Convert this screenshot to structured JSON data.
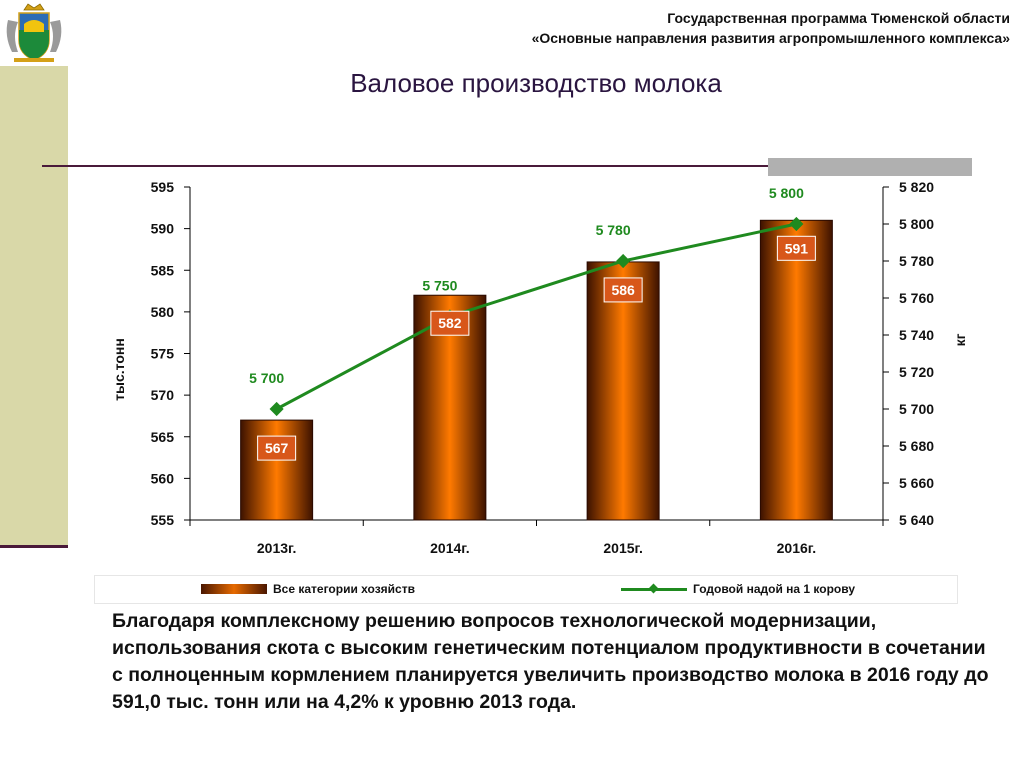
{
  "header": {
    "line1": "Государственная программа Тюменской области",
    "line2": "«Основные направления развития агропромышленного комплекса»"
  },
  "emblem_icon": "tyumen-coat-of-arms-icon",
  "title": "Валовое производство молока",
  "colors": {
    "bar_dark": "#4a1600",
    "bar_light": "#e66a00",
    "line": "#1f8a1f",
    "label_box": "#d8571a",
    "band": "#d9d8a8",
    "accent_dark": "#4a1a3a"
  },
  "chart_data": {
    "type": "bar",
    "categories": [
      "2013г.",
      "2014г.",
      "2015г.",
      "2016г."
    ],
    "series": [
      {
        "name": "Все категории хозяйств",
        "type": "bar",
        "axis": "left",
        "values": [
          567,
          582,
          586,
          591
        ],
        "labels": [
          "567",
          "582",
          "586",
          "591"
        ]
      },
      {
        "name": "Годовой надой на 1 корову",
        "type": "line",
        "axis": "right",
        "values": [
          5700,
          5750,
          5780,
          5800
        ],
        "labels": [
          "5 700",
          "5 750",
          "5 780",
          "5 800"
        ]
      }
    ],
    "ylabel": "тыс.тонн",
    "ylabel_right": "кг",
    "ylim": [
      555,
      595
    ],
    "ylim_right": [
      5640,
      5820
    ],
    "yticks": [
      "555",
      "560",
      "565",
      "570",
      "575",
      "580",
      "585",
      "590",
      "595"
    ],
    "yticks_right": [
      "5 640",
      "5 660",
      "5 680",
      "5 700",
      "5 720",
      "5 740",
      "5 760",
      "5 780",
      "5 800",
      "5 820"
    ],
    "grid": false,
    "legend_position": "bottom"
  },
  "caption": "Благодаря комплексному решению вопросов технологической модернизации, использования скота с высоким генетическим потенциалом продуктивности в сочетании с полноценным кормлением планируется увеличить производство молока в 2016 году до 591,0 тыс. тонн или на 4,2% к уровню 2013 года."
}
